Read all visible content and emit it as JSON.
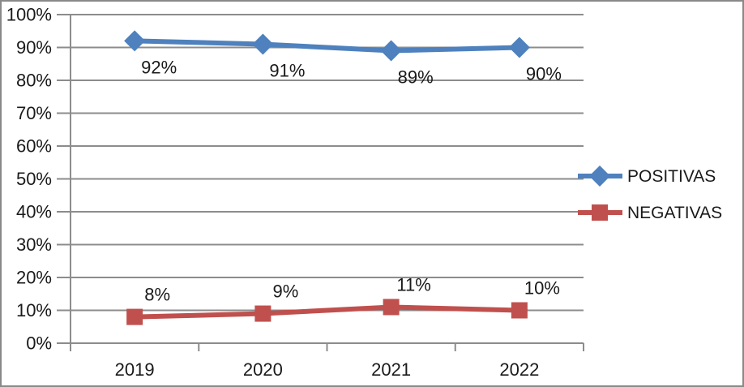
{
  "chart_data": {
    "type": "line",
    "categories": [
      "2019",
      "2020",
      "2021",
      "2022"
    ],
    "series": [
      {
        "name": "POSITIVAS",
        "values": [
          92,
          91,
          89,
          90
        ],
        "data_labels": [
          "92%",
          "91%",
          "89%",
          "90%"
        ],
        "color": "#4E81BD",
        "marker": "diamond",
        "label_position": "below"
      },
      {
        "name": "NEGATIVAS",
        "values": [
          8,
          9,
          11,
          10
        ],
        "data_labels": [
          "8%",
          "9%",
          "11%",
          "10%"
        ],
        "color": "#C0504D",
        "marker": "square",
        "label_position": "above"
      }
    ],
    "title": "",
    "xlabel": "",
    "ylabel": "",
    "ylim": [
      0,
      100
    ],
    "ytick_step": 10,
    "ytick_labels": [
      "0%",
      "10%",
      "20%",
      "30%",
      "40%",
      "50%",
      "60%",
      "70%",
      "80%",
      "90%",
      "100%"
    ],
    "grid": true,
    "legend_position": "right",
    "colors": {
      "gridline": "#8C8C8C",
      "axis": "#8C8C8C",
      "text": "#1a1a1a",
      "frame_border": "#898989",
      "background": "#FFFFFF"
    }
  }
}
